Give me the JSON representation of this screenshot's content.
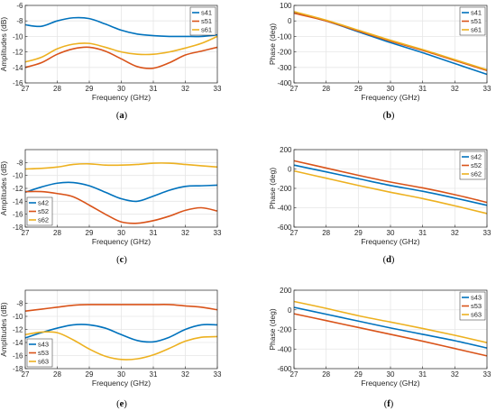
{
  "colors": {
    "c1": "#0072BD",
    "c2": "#D95319",
    "c3": "#EDB120",
    "grid": "#e6e6e6",
    "axis": "#262626"
  },
  "chart_data": [
    {
      "caption": "(a)",
      "type": "line",
      "xlabel": "Frequency (GHz)",
      "ylabel": "Amplitudes (dB)",
      "xlim": [
        27,
        33
      ],
      "ylim": [
        -16,
        -6
      ],
      "xticks": [
        "27",
        "28",
        "29",
        "30",
        "31",
        "32",
        "33"
      ],
      "yticks": [
        "-16",
        "-14",
        "-12",
        "-10",
        "-8",
        "-6"
      ],
      "grid": true,
      "legend_position": "top-right",
      "x": [
        27,
        27.5,
        28,
        28.5,
        29,
        29.5,
        30,
        30.5,
        31,
        31.5,
        32,
        32.5,
        33
      ],
      "series": [
        {
          "name": "s41",
          "values": [
            -8.5,
            -8.7,
            -8.0,
            -7.6,
            -7.7,
            -8.4,
            -9.2,
            -9.7,
            -9.9,
            -10.0,
            -10.0,
            -10.0,
            -9.8
          ]
        },
        {
          "name": "s51",
          "values": [
            -14.0,
            -13.4,
            -12.3,
            -11.6,
            -11.4,
            -11.9,
            -12.9,
            -13.9,
            -14.1,
            -13.4,
            -12.4,
            -11.9,
            -11.4
          ]
        },
        {
          "name": "s61",
          "values": [
            -13.3,
            -12.7,
            -11.6,
            -11.0,
            -10.9,
            -11.4,
            -12.0,
            -12.3,
            -12.3,
            -12.0,
            -11.5,
            -10.9,
            -10.0
          ]
        }
      ]
    },
    {
      "caption": "(b)",
      "type": "line",
      "xlabel": "Frequency (GHz)",
      "ylabel": "Phase (deg)",
      "xlim": [
        27,
        33
      ],
      "ylim": [
        -400,
        100
      ],
      "xticks": [
        "27",
        "28",
        "29",
        "30",
        "31",
        "32",
        "33"
      ],
      "yticks": [
        "-400",
        "-300",
        "-200",
        "-100",
        "0",
        "100"
      ],
      "grid": true,
      "legend_position": "top-right",
      "x": [
        27,
        28,
        29,
        30,
        31,
        32,
        33
      ],
      "series": [
        {
          "name": "s41",
          "values": [
            55,
            0,
            -70,
            -140,
            -205,
            -275,
            -345
          ]
        },
        {
          "name": "s51",
          "values": [
            50,
            0,
            -65,
            -130,
            -190,
            -255,
            -320
          ]
        },
        {
          "name": "s61",
          "values": [
            60,
            5,
            -60,
            -125,
            -185,
            -250,
            -315
          ]
        }
      ]
    },
    {
      "caption": "(c)",
      "type": "line",
      "xlabel": "Frequency (GHz)",
      "ylabel": "Amplitudes (dB)",
      "xlim": [
        27,
        33
      ],
      "ylim": [
        -18,
        -6
      ],
      "xticks": [
        "27",
        "28",
        "29",
        "30",
        "31",
        "32",
        "33"
      ],
      "yticks": [
        "-18",
        "-16",
        "-14",
        "-12",
        "-10",
        "-8"
      ],
      "grid": true,
      "legend_position": "bottom-left",
      "x": [
        27,
        27.5,
        28,
        28.5,
        29,
        29.5,
        30,
        30.5,
        31,
        31.5,
        32,
        32.5,
        33
      ],
      "series": [
        {
          "name": "s42",
          "values": [
            -12.6,
            -11.8,
            -11.2,
            -11.1,
            -11.6,
            -12.6,
            -13.6,
            -14.0,
            -13.2,
            -12.3,
            -11.7,
            -11.6,
            -11.5
          ]
        },
        {
          "name": "s52",
          "values": [
            -12.5,
            -12.5,
            -12.8,
            -13.3,
            -14.6,
            -16.0,
            -17.2,
            -17.4,
            -17.0,
            -16.3,
            -15.4,
            -15.0,
            -15.5
          ]
        },
        {
          "name": "s62",
          "values": [
            -9.0,
            -8.9,
            -8.7,
            -8.3,
            -8.2,
            -8.4,
            -8.4,
            -8.3,
            -8.1,
            -8.1,
            -8.3,
            -8.5,
            -8.7
          ]
        }
      ]
    },
    {
      "caption": "(d)",
      "type": "line",
      "xlabel": "Frequency (GHz)",
      "ylabel": "Phase (deg)",
      "xlim": [
        27,
        33
      ],
      "ylim": [
        -600,
        200
      ],
      "xticks": [
        "27",
        "28",
        "29",
        "30",
        "31",
        "32",
        "33"
      ],
      "yticks": [
        "-600",
        "-400",
        "-200",
        "0",
        "200"
      ],
      "grid": true,
      "legend_position": "top-right",
      "x": [
        27,
        28,
        29,
        30,
        31,
        32,
        33
      ],
      "series": [
        {
          "name": "s42",
          "values": [
            40,
            -30,
            -100,
            -170,
            -230,
            -300,
            -375
          ]
        },
        {
          "name": "s52",
          "values": [
            85,
            10,
            -65,
            -135,
            -195,
            -265,
            -345
          ]
        },
        {
          "name": "s62",
          "values": [
            -20,
            -95,
            -170,
            -240,
            -305,
            -380,
            -460
          ]
        }
      ]
    },
    {
      "caption": "(e)",
      "type": "line",
      "xlabel": "Frequency (GHz)",
      "ylabel": "Amplitudes (dB)",
      "xlim": [
        27,
        33
      ],
      "ylim": [
        -18,
        -6
      ],
      "xticks": [
        "27",
        "28",
        "29",
        "30",
        "31",
        "32",
        "33"
      ],
      "yticks": [
        "-18",
        "-16",
        "-14",
        "-12",
        "-10",
        "-8"
      ],
      "grid": true,
      "legend_position": "bottom-left",
      "x": [
        27,
        27.5,
        28,
        28.5,
        29,
        29.5,
        30,
        30.5,
        31,
        31.5,
        32,
        32.5,
        33
      ],
      "series": [
        {
          "name": "s43",
          "values": [
            -13.3,
            -12.5,
            -11.8,
            -11.3,
            -11.3,
            -11.8,
            -12.8,
            -13.7,
            -13.9,
            -13.2,
            -12.0,
            -11.3,
            -11.3
          ]
        },
        {
          "name": "s53",
          "values": [
            -9.2,
            -8.9,
            -8.6,
            -8.3,
            -8.2,
            -8.2,
            -8.2,
            -8.2,
            -8.2,
            -8.2,
            -8.4,
            -8.6,
            -9.0
          ]
        },
        {
          "name": "s63",
          "values": [
            -12.8,
            -12.4,
            -12.5,
            -13.6,
            -15.0,
            -16.1,
            -16.6,
            -16.5,
            -15.9,
            -14.9,
            -13.8,
            -13.2,
            -13.1
          ]
        }
      ]
    },
    {
      "caption": "(f)",
      "type": "line",
      "xlabel": "Frequency (GHz)",
      "ylabel": "Phase (deg)",
      "xlim": [
        27,
        33
      ],
      "ylim": [
        -600,
        200
      ],
      "xticks": [
        "27",
        "28",
        "29",
        "30",
        "31",
        "32",
        "33"
      ],
      "yticks": [
        "-600",
        "-400",
        "-200",
        "0",
        "200"
      ],
      "grid": true,
      "legend_position": "top-right",
      "x": [
        27,
        28,
        29,
        30,
        31,
        32,
        33
      ],
      "series": [
        {
          "name": "s43",
          "values": [
            25,
            -45,
            -115,
            -185,
            -250,
            -315,
            -390
          ]
        },
        {
          "name": "s53",
          "values": [
            -40,
            -110,
            -180,
            -250,
            -320,
            -395,
            -470
          ]
        },
        {
          "name": "s63",
          "values": [
            85,
            15,
            -60,
            -125,
            -190,
            -260,
            -335
          ]
        }
      ]
    }
  ]
}
